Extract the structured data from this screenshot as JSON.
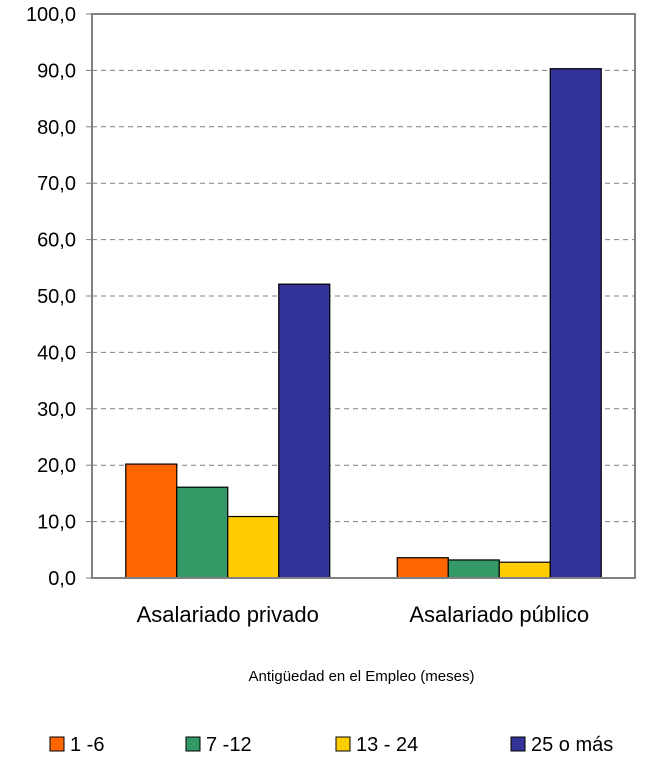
{
  "chart_data": {
    "type": "bar",
    "categories": [
      "Asalariado privado",
      "Asalariado público"
    ],
    "series": [
      {
        "name": "1 -6",
        "color": "#FF6600",
        "values": [
          20.2,
          3.6
        ]
      },
      {
        "name": "7 -12",
        "color": "#339966",
        "values": [
          16.1,
          3.2
        ]
      },
      {
        "name": "13 - 24",
        "color": "#FFCC00",
        "values": [
          10.9,
          2.8
        ]
      },
      {
        "name": "25 o más",
        "color": "#333399",
        "values": [
          52.1,
          90.3
        ]
      }
    ],
    "ylim": [
      0,
      100
    ],
    "yticks": [
      "0,0",
      "10,0",
      "20,0",
      "30,0",
      "40,0",
      "50,0",
      "60,0",
      "70,0",
      "80,0",
      "90,0",
      "100,0"
    ],
    "xlabel": "Antigüedad en el Empleo (meses)",
    "ylabel": "",
    "title": "",
    "grid": true,
    "legend_position": "bottom"
  }
}
